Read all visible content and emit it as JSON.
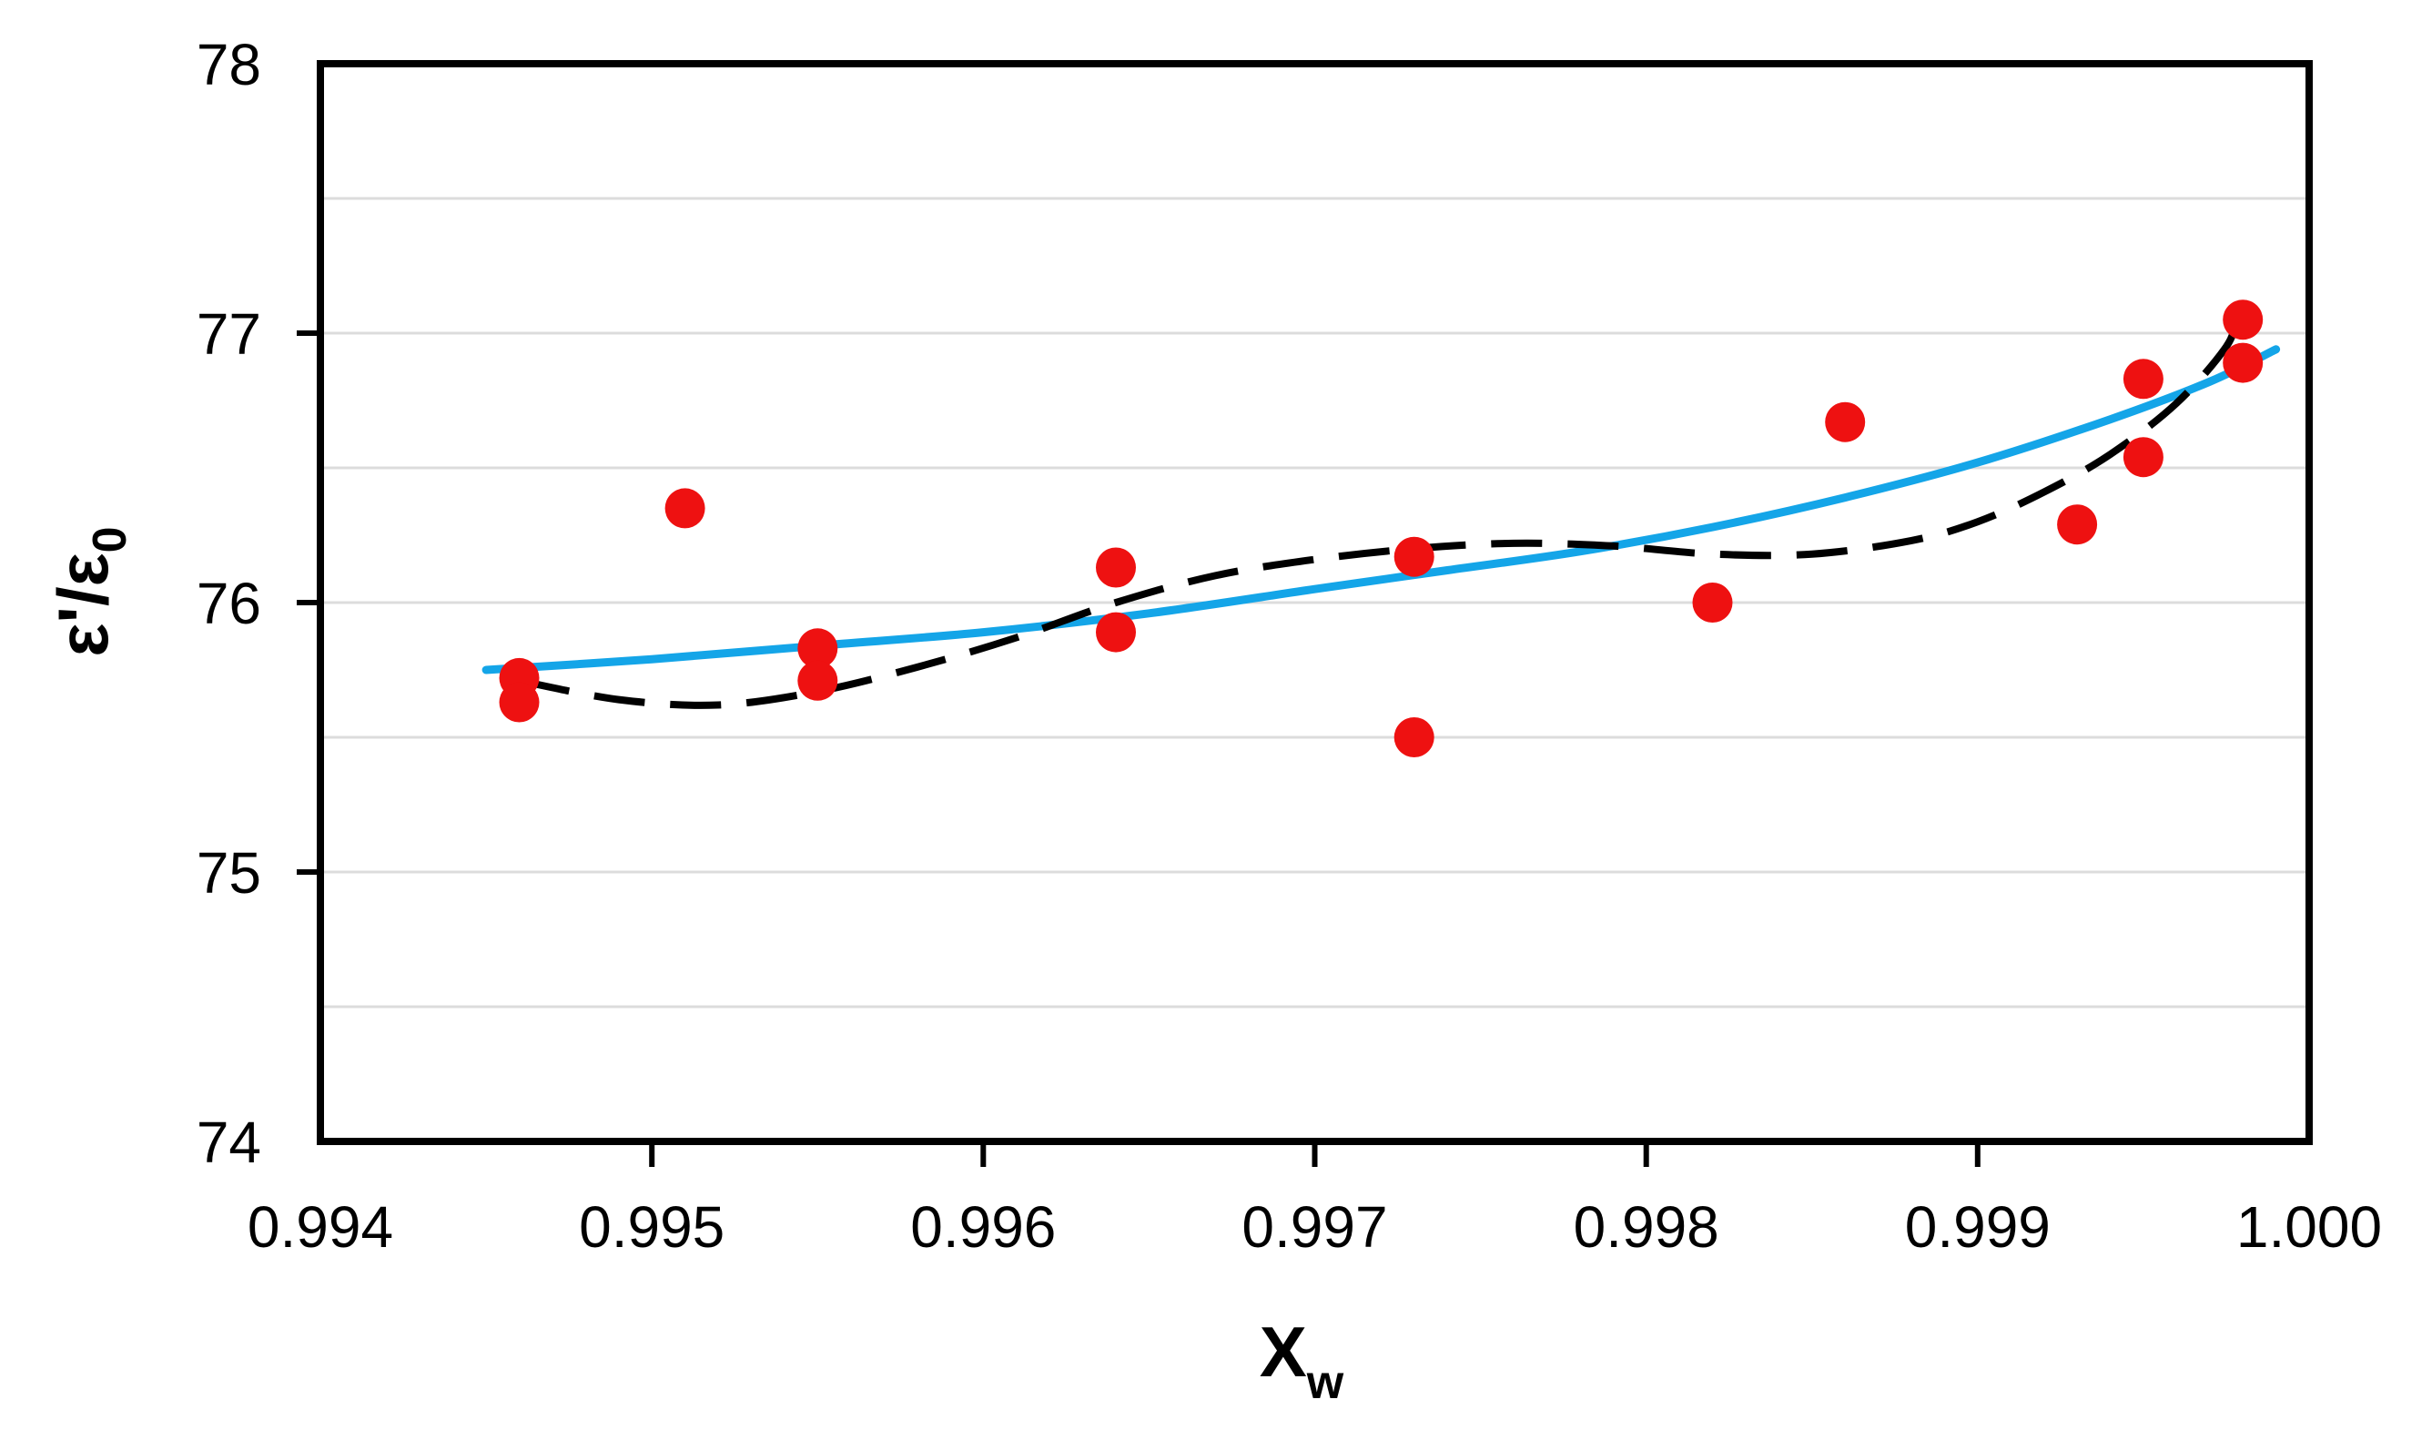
{
  "chart_data": {
    "type": "scatter",
    "title": "",
    "xlabel_base": "X",
    "xlabel_sub": "w",
    "ylabel_base": "ε'/ε",
    "ylabel_sub": "0",
    "xlim": [
      0.994,
      1.0
    ],
    "ylim": [
      74,
      78
    ],
    "x_tick_labels": [
      "0.994",
      "0.995",
      "0.996",
      "0.997",
      "0.998",
      "0.999",
      "1.000"
    ],
    "x_tick_values": [
      0.994,
      0.995,
      0.996,
      0.997,
      0.998,
      0.999,
      1.0
    ],
    "x_tick_marks": [
      0.995,
      0.996,
      0.997,
      0.998,
      0.999
    ],
    "y_tick_labels": [
      "74",
      "75",
      "76",
      "77",
      "78"
    ],
    "y_tick_values": [
      74,
      75,
      76,
      77,
      78
    ],
    "y_tick_marks": [
      75,
      76,
      77
    ],
    "gridline_step": 0.5,
    "gridline_values": [
      74.5,
      75.0,
      75.5,
      76.0,
      76.5,
      77.0,
      77.5
    ],
    "legend": "none",
    "colors": {
      "point": "#ee1111",
      "solid_trend": "#14a5e8",
      "dashed_trend": "#000000",
      "gridline": "#dcdcdc",
      "axis": "#000000",
      "background": "#ffffff"
    },
    "series": [
      {
        "name": "measurements",
        "type": "scatter",
        "marker": "circle",
        "points": [
          [
            0.9946,
            75.72
          ],
          [
            0.9946,
            75.63
          ],
          [
            0.9951,
            76.35
          ],
          [
            0.9955,
            75.83
          ],
          [
            0.9955,
            75.71
          ],
          [
            0.9964,
            76.13
          ],
          [
            0.9964,
            75.89
          ],
          [
            0.9973,
            76.17
          ],
          [
            0.9973,
            75.5
          ],
          [
            0.9982,
            76.0
          ],
          [
            0.9986,
            76.67
          ],
          [
            0.9993,
            76.29
          ],
          [
            0.9995,
            76.83
          ],
          [
            0.9995,
            76.54
          ],
          [
            0.9998,
            77.05
          ],
          [
            0.9998,
            76.89
          ]
        ]
      },
      {
        "name": "smooth-trend-solid",
        "type": "line",
        "style": "solid",
        "points": [
          [
            0.9945,
            75.75
          ],
          [
            0.995,
            75.79
          ],
          [
            0.9955,
            75.84
          ],
          [
            0.996,
            75.89
          ],
          [
            0.9965,
            75.96
          ],
          [
            0.997,
            76.05
          ],
          [
            0.9974,
            76.12
          ],
          [
            0.9978,
            76.19
          ],
          [
            0.9982,
            76.28
          ],
          [
            0.9986,
            76.39
          ],
          [
            0.999,
            76.52
          ],
          [
            0.9994,
            76.68
          ],
          [
            0.9997,
            76.82
          ],
          [
            0.9999,
            76.94
          ]
        ]
      },
      {
        "name": "polynomial-trend-dashed",
        "type": "line",
        "style": "dashed",
        "points": [
          [
            0.9946,
            75.71
          ],
          [
            0.9949,
            75.64
          ],
          [
            0.9952,
            75.62
          ],
          [
            0.9955,
            75.67
          ],
          [
            0.9958,
            75.76
          ],
          [
            0.9961,
            75.87
          ],
          [
            0.9964,
            76.0
          ],
          [
            0.9967,
            76.1
          ],
          [
            0.997,
            76.16
          ],
          [
            0.9973,
            76.2
          ],
          [
            0.9976,
            76.22
          ],
          [
            0.9979,
            76.21
          ],
          [
            0.9982,
            76.18
          ],
          [
            0.9985,
            76.18
          ],
          [
            0.9988,
            76.23
          ],
          [
            0.999,
            76.3
          ],
          [
            0.9992,
            76.41
          ],
          [
            0.9994,
            76.55
          ],
          [
            0.9996,
            76.74
          ],
          [
            0.99975,
            76.95
          ],
          [
            0.99978,
            77.06
          ]
        ]
      }
    ]
  }
}
